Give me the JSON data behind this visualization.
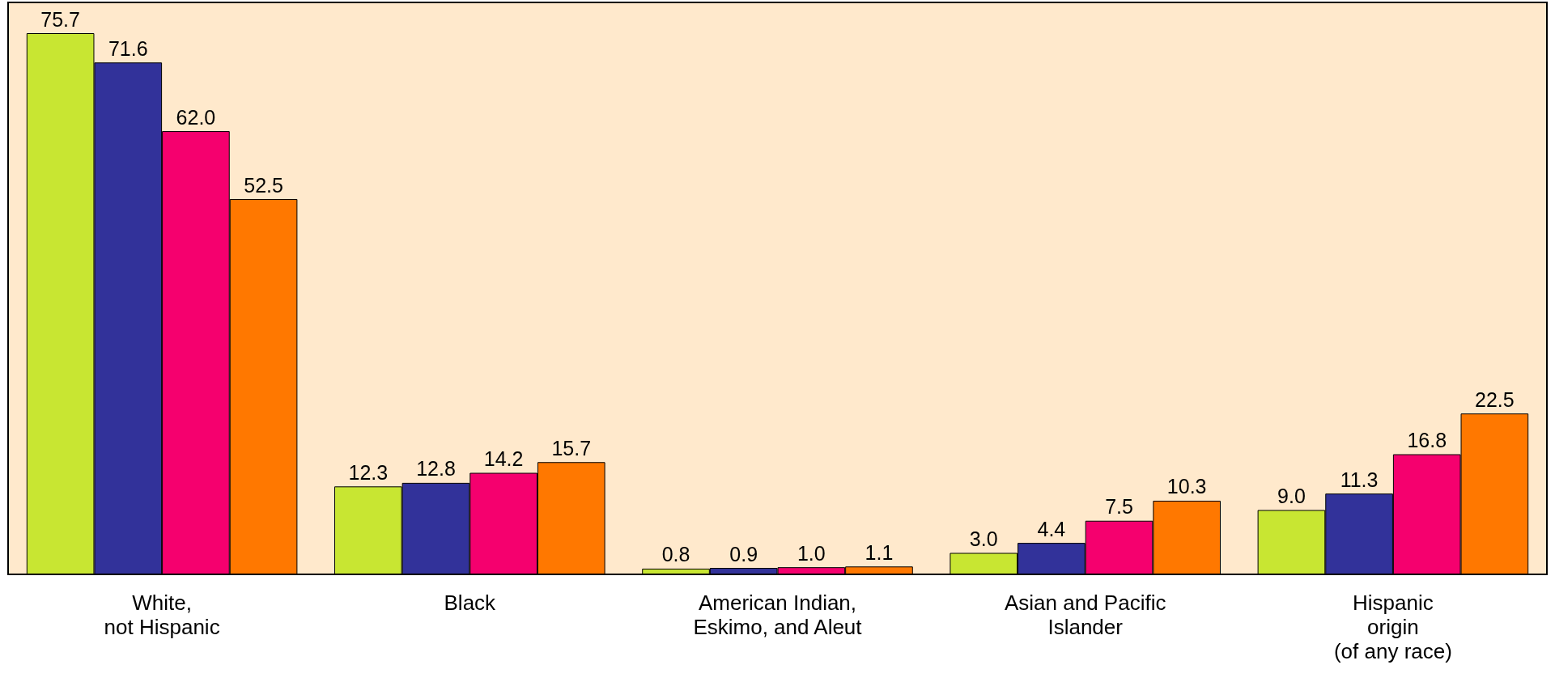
{
  "chart_data": {
    "type": "bar",
    "categories": [
      "White,\nnot Hispanic",
      "Black",
      "American Indian,\nEskimo, and Aleut",
      "Asian and Pacific\nIslander",
      "Hispanic\norigin\n(of any race)"
    ],
    "series": [
      {
        "color": "#c8e632",
        "values": [
          75.7,
          12.3,
          0.8,
          3.0,
          9.0
        ],
        "value_labels": [
          "75.7",
          "12.3",
          "0.8",
          "3.0",
          "9.0"
        ]
      },
      {
        "color": "#32329a",
        "values": [
          71.6,
          12.8,
          0.9,
          4.4,
          11.3
        ],
        "value_labels": [
          "71.6",
          "12.8",
          "0.9",
          "4.4",
          "11.3"
        ]
      },
      {
        "color": "#f5006e",
        "values": [
          62.0,
          14.2,
          1.0,
          7.5,
          16.8
        ],
        "value_labels": [
          "62.0",
          "14.2",
          "1.0",
          "7.5",
          "16.8"
        ]
      },
      {
        "color": "#ff7800",
        "values": [
          52.5,
          15.7,
          1.1,
          10.3,
          22.5
        ],
        "value_labels": [
          "52.5",
          "15.7",
          "1.1",
          "10.3",
          "22.5"
        ]
      }
    ]
  }
}
